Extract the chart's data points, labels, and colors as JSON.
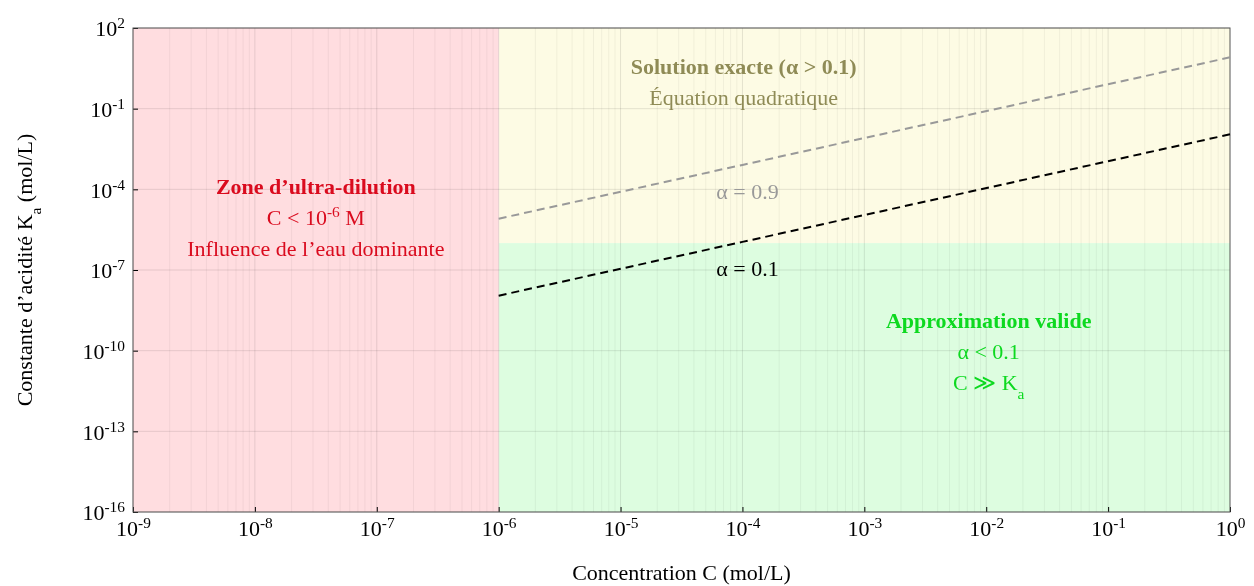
{
  "chart_data": {
    "type": "line",
    "xlabel": "Concentration C (mol/L)",
    "ylabel": "Constante d’acidité K$_{a}$ (mol/L)",
    "log": "xy",
    "xlim": [
      1e-09,
      1
    ],
    "ylim": [
      1e-16,
      100
    ],
    "xticks": [
      {
        "value": 1e-09,
        "label": "10$^{-9}$"
      },
      {
        "value": 1e-08,
        "label": "10$^{-8}$"
      },
      {
        "value": 1e-07,
        "label": "10$^{-7}$"
      },
      {
        "value": 1e-06,
        "label": "10$^{-6}$"
      },
      {
        "value": 1e-05,
        "label": "10$^{-5}$"
      },
      {
        "value": 0.0001,
        "label": "10$^{-4}$"
      },
      {
        "value": 0.001,
        "label": "10$^{-3}$"
      },
      {
        "value": 0.01,
        "label": "10$^{-2}$"
      },
      {
        "value": 0.1,
        "label": "10$^{-1}$"
      },
      {
        "value": 1,
        "label": "10$^{0}$"
      }
    ],
    "yticks": [
      {
        "value": 1e-16,
        "label": "10$^{-16}$"
      },
      {
        "value": 1e-13,
        "label": "10$^{-13}$"
      },
      {
        "value": 1e-10,
        "label": "10$^{-10}$"
      },
      {
        "value": 1e-07,
        "label": "10$^{-7}$"
      },
      {
        "value": 0.0001,
        "label": "10$^{-4}$"
      },
      {
        "value": 0.1,
        "label": "10$^{-1}$"
      },
      {
        "value": 100,
        "label": "10$^{2}$"
      }
    ],
    "grid": true,
    "line_style": "dashed",
    "marker": "none",
    "series": [
      {
        "name": "α = 0.9",
        "color": "#999999",
        "x": [
          1e-06,
          0.0001,
          1
        ],
        "values": [
          8.1e-06,
          0.00081,
          8.1
        ]
      },
      {
        "name": "α = 0.1",
        "color": "#000000",
        "x": [
          1e-06,
          0.0001,
          1
        ],
        "values": [
          1.11e-08,
          1.11e-06,
          0.0111
        ]
      }
    ],
    "bands": [
      {
        "axis": "y",
        "from": 1e-06,
        "to": 100,
        "color": "#fdfbe4"
      },
      {
        "axis": "y",
        "from": 1e-16,
        "to": 1e-06,
        "color": "#ddfde0"
      },
      {
        "axis": "x",
        "from": 1e-09,
        "to": 1e-06,
        "color": "#ffdde0"
      }
    ],
    "annotations": [
      "Solution exacte (α > 0.1)\nÉquation quadratique",
      "Approximation valide\nα < 0.1\nC ≫ K$_{a}$",
      "Zone d’ultra-dilution\nC < 10$^{-6}$ M\nInfluence de l’eau dominante"
    ]
  }
}
